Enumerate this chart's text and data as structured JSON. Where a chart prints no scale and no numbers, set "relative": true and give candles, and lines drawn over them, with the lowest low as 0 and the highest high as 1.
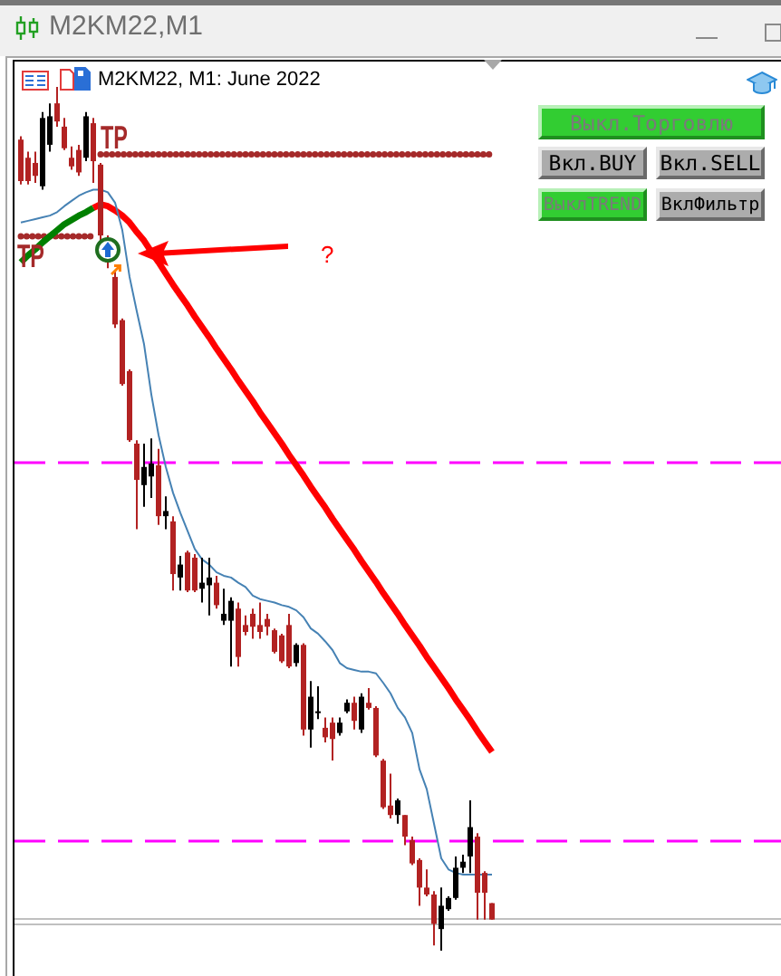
{
  "chart_data": {
    "type": "candlestick",
    "title": "M2KM22,M1",
    "subtitle": "M2KM22, M1: June 2022",
    "relative": true,
    "categories": [
      null,
      null,
      null,
      null,
      null,
      null,
      null,
      null,
      null,
      null,
      null,
      null,
      null,
      null,
      null,
      null,
      null,
      null,
      null,
      null,
      null,
      null,
      null,
      null,
      null,
      null,
      null,
      null,
      null,
      null,
      null,
      null,
      null,
      null,
      null,
      null,
      null,
      null,
      null,
      null,
      null,
      null,
      null,
      null,
      null,
      null,
      null,
      null,
      null,
      null,
      null,
      null,
      null,
      null,
      null,
      null,
      null,
      null,
      null,
      null,
      null,
      null,
      null,
      null,
      null,
      null
    ],
    "ohlc": [
      [
        0.939,
        0.943,
        0.887,
        0.891
      ],
      [
        0.918,
        0.925,
        0.887,
        0.891
      ],
      [
        0.912,
        0.925,
        0.889,
        0.897
      ],
      [
        0.885,
        0.971,
        0.881,
        0.964
      ],
      [
        0.933,
        0.981,
        0.925,
        0.966
      ],
      [
        0.981,
        1,
        0.954,
        0.96
      ],
      [
        0.954,
        0.964,
        0.927,
        0.929
      ],
      [
        0.918,
        0.931,
        0.904,
        0.908
      ],
      [
        0.927,
        0.933,
        0.897,
        0.901
      ],
      [
        0.918,
        0.971,
        0.914,
        0.966
      ],
      [
        0.958,
        0.964,
        0.889,
        0.914
      ],
      [
        0.91,
        0.912,
        0.818,
        0.828
      ],
      [
        0.822,
        0.828,
        0.79,
        0.797
      ],
      [
        0.78,
        0.786,
        0.721,
        0.725
      ],
      [
        0.73,
        0.732,
        0.654,
        0.656
      ],
      [
        0.671,
        0.673,
        0.589,
        0.591
      ],
      [
        0.587,
        0.591,
        0.488,
        0.545
      ],
      [
        0.539,
        0.587,
        0.514,
        0.56
      ],
      [
        0.549,
        0.593,
        0.524,
        0.564
      ],
      [
        0.562,
        0.581,
        0.493,
        0.503
      ],
      [
        0.503,
        0.526,
        0.488,
        0.509
      ],
      [
        0.497,
        0.503,
        0.417,
        0.436
      ],
      [
        0.432,
        0.457,
        0.417,
        0.447
      ],
      [
        0.461,
        0.463,
        0.415,
        0.417
      ],
      [
        0.455,
        0.459,
        0.415,
        0.417
      ],
      [
        0.419,
        0.455,
        0.403,
        0.426
      ],
      [
        0.423,
        0.455,
        0.388,
        0.432
      ],
      [
        0.426,
        0.434,
        0.396,
        0.4
      ],
      [
        0.382,
        0.419,
        0.377,
        0.39
      ],
      [
        0.382,
        0.409,
        0.329,
        0.405
      ],
      [
        0.396,
        0.403,
        0.329,
        0.34
      ],
      [
        0.377,
        0.388,
        0.365,
        0.369
      ],
      [
        0.39,
        0.396,
        0.361,
        0.375
      ],
      [
        0.377,
        0.403,
        0.361,
        0.369
      ],
      [
        0.384,
        0.39,
        0.365,
        0.375
      ],
      [
        0.371,
        0.373,
        0.344,
        0.346
      ],
      [
        0.365,
        0.367,
        0.333,
        0.335
      ],
      [
        0.377,
        0.39,
        0.327,
        0.329
      ],
      [
        0.333,
        0.356,
        0.329,
        0.354
      ],
      [
        0.354,
        0.356,
        0.249,
        0.256
      ],
      [
        0.256,
        0.312,
        0.235,
        0.294
      ],
      [
        0.275,
        0.306,
        0.268,
        0.277
      ],
      [
        0.258,
        0.27,
        0.241,
        0.247
      ],
      [
        0.264,
        0.27,
        0.22,
        0.245
      ],
      [
        0.252,
        0.27,
        0.249,
        0.264
      ],
      [
        0.277,
        0.291,
        0.275,
        0.287
      ],
      [
        0.287,
        0.294,
        0.256,
        0.266
      ],
      [
        0.256,
        0.298,
        0.252,
        0.294
      ],
      [
        0.287,
        0.304,
        0.279,
        0.281
      ],
      [
        0.281,
        0.283,
        0.224,
        0.226
      ],
      [
        0.22,
        0.222,
        0.164,
        0.166
      ],
      [
        0.168,
        0.205,
        0.153,
        0.157
      ],
      [
        0.157,
        0.176,
        0.147,
        0.174
      ],
      [
        0.157,
        0.157,
        0.122,
        0.132
      ],
      [
        0.128,
        0.132,
        0.099,
        0.101
      ],
      [
        0.105,
        0.107,
        0.052,
        0.073
      ],
      [
        0.073,
        0.094,
        0.063,
        0.065
      ],
      [
        0.065,
        0.069,
        0.006,
        0.031
      ],
      [
        0.025,
        0.073,
        0,
        0.052
      ],
      [
        0.048,
        0.063,
        0.046,
        0.061
      ],
      [
        0.061,
        0.109,
        0.059,
        0.096
      ],
      [
        0.096,
        0.111,
        0.09,
        0.103
      ],
      [
        0.109,
        0.174,
        0.09,
        0.143
      ],
      [
        0.132,
        0.136,
        0.036,
        0.067
      ],
      [
        0.09,
        0.092,
        0.036,
        0.067
      ],
      [
        0.055,
        0.055,
        0.036,
        0.036
      ]
    ],
    "colors": [
      "#b22222",
      "#b22222",
      "#b22222",
      "#000000",
      "#000000",
      "#b22222",
      "#b22222",
      "#b22222",
      "#b22222",
      "#000000",
      "#b22222",
      "#b22222",
      "#b22222",
      "#b22222",
      "#b22222",
      "#b22222",
      "#b22222",
      "#000000",
      "#000000",
      "#b22222",
      "#000000",
      "#b22222",
      "#000000",
      "#b22222",
      "#b22222",
      "#000000",
      "#000000",
      "#b22222",
      "#000000",
      "#000000",
      "#b22222",
      "#b22222",
      "#b22222",
      "#b22222",
      "#b22222",
      "#b22222",
      "#b22222",
      "#b22222",
      "#000000",
      "#b22222",
      "#000000",
      "#000000",
      "#b22222",
      "#b22222",
      "#000000",
      "#000000",
      "#b22222",
      "#000000",
      "#b22222",
      "#b22222",
      "#b22222",
      "#b22222",
      "#000000",
      "#b22222",
      "#b22222",
      "#b22222",
      "#b22222",
      "#b22222",
      "#000000",
      "#000000",
      "#000000",
      "#000000",
      "#000000",
      "#b22222",
      "#b22222",
      "#b22222"
    ],
    "series": [
      {
        "type": "line",
        "color": "#4682b4",
        "values": [
          0.843,
          0.845,
          0.847,
          0.849,
          0.851,
          0.855,
          0.862,
          0.868,
          0.874,
          0.878,
          0.881,
          0.881,
          0.878,
          0.866,
          0.834,
          0.78,
          0.74,
          0.702,
          0.644,
          0.597,
          0.56,
          0.53,
          0.507,
          0.486,
          0.465,
          0.453,
          0.447,
          0.438,
          0.434,
          0.432,
          0.426,
          0.421,
          0.411,
          0.407,
          0.405,
          0.403,
          0.4,
          0.398,
          0.394,
          0.386,
          0.373,
          0.367,
          0.358,
          0.348,
          0.333,
          0.327,
          0.325,
          0.323,
          0.323,
          0.321,
          0.31,
          0.298,
          0.281,
          0.27,
          0.252,
          0.21,
          0.187,
          0.147,
          0.107,
          0.094,
          0.09,
          0.088,
          0.088,
          0.088,
          0.088,
          0.088
        ]
      },
      {
        "type": "line",
        "color": "#008000",
        "values": [
          0.797,
          0.805,
          0.812,
          0.82,
          0.827,
          0.834,
          0.841,
          0.846,
          0.851,
          0.855,
          0.86,
          null,
          null,
          null,
          null,
          null,
          null,
          null,
          null,
          null,
          null,
          null,
          null,
          null,
          null,
          null,
          null,
          null,
          null,
          null,
          null,
          null,
          null,
          null,
          null,
          null,
          null,
          null,
          null,
          null,
          null,
          null,
          null,
          null,
          null,
          null,
          null,
          null,
          null,
          null,
          null,
          null,
          null,
          null,
          null,
          null,
          null,
          null,
          null,
          null,
          null,
          null,
          null,
          null,
          null,
          null
        ]
      },
      {
        "type": "line",
        "color": "#ff0000",
        "values": [
          null,
          null,
          null,
          null,
          null,
          null,
          null,
          null,
          null,
          null,
          0.86,
          0.864,
          0.862,
          0.857,
          0.851,
          0.843,
          0.832,
          0.822,
          0.809,
          0.797,
          0.784,
          0.771,
          0.759,
          0.747,
          0.734,
          0.722,
          0.71,
          0.697,
          0.685,
          0.673,
          0.66,
          0.648,
          0.636,
          0.623,
          0.611,
          0.599,
          0.587,
          0.574,
          0.562,
          0.55,
          0.537,
          0.525,
          0.513,
          0.5,
          0.488,
          0.476,
          0.464,
          0.451,
          0.439,
          0.427,
          0.414,
          0.402,
          0.39,
          0.377,
          0.365,
          0.353,
          0.34,
          0.328,
          0.316,
          0.304,
          0.291,
          0.279,
          0.267,
          0.254,
          0.242,
          0.23
        ]
      },
      {
        "type": "line",
        "name": "TP",
        "color": "#a52a2a",
        "line_style": "dotted",
        "values": [
          null,
          null,
          null,
          null,
          null,
          null,
          null,
          null,
          null,
          null,
          null,
          0.922,
          0.922,
          0.922,
          0.922,
          0.922,
          0.922,
          0.922,
          0.922,
          0.922,
          0.922,
          0.922,
          0.922,
          0.922,
          0.922,
          0.922,
          0.922,
          0.922,
          0.922,
          0.922,
          0.922,
          0.922,
          0.922,
          0.922,
          0.922,
          0.922,
          0.922,
          0.922,
          0.922,
          0.922,
          0.922,
          0.922,
          0.922,
          0.922,
          0.922,
          0.922,
          0.922,
          0.922,
          0.922,
          0.922,
          0.922,
          0.922,
          0.922,
          0.922,
          0.922,
          0.922,
          0.922,
          0.922,
          0.922,
          0.922,
          0.922,
          0.922,
          0.922,
          0.922,
          0.922,
          0.922
        ]
      },
      {
        "type": "line",
        "name": "TP",
        "color": "#a52a2a",
        "line_style": "dotted",
        "values": [
          0.827,
          0.827,
          0.827,
          0.827,
          0.827,
          0.827,
          0.827,
          0.827,
          0.827,
          0.827,
          0.827,
          null,
          null,
          null,
          null,
          null,
          null,
          null,
          null,
          null,
          null,
          null,
          null,
          null,
          null,
          null,
          null,
          null,
          null,
          null,
          null,
          null,
          null,
          null,
          null,
          null,
          null,
          null,
          null,
          null,
          null,
          null,
          null,
          null,
          null,
          null,
          null,
          null,
          null,
          null,
          null,
          null,
          null,
          null,
          null,
          null,
          null,
          null,
          null,
          null,
          null,
          null,
          null,
          null,
          null,
          null
        ]
      }
    ],
    "ref_lines": [
      {
        "axis": "y",
        "value": 0.566,
        "color": "#ff00ff",
        "line_style": "dashed"
      },
      {
        "axis": "y",
        "value": 0.128,
        "color": "#ff00ff",
        "line_style": "dashed"
      },
      {
        "axis": "y",
        "value": 0.038,
        "color": "#c0c0c0",
        "line_style": "solid"
      },
      {
        "axis": "y",
        "value": 0.031,
        "color": "#c0c0c0",
        "line_style": "solid"
      }
    ],
    "annotations": [
      "?",
      "Выкл.Торговлю",
      "Вкл.BUY",
      "Вкл.SELL",
      "ВыклTREND",
      "ВклФильтр"
    ]
  }
}
